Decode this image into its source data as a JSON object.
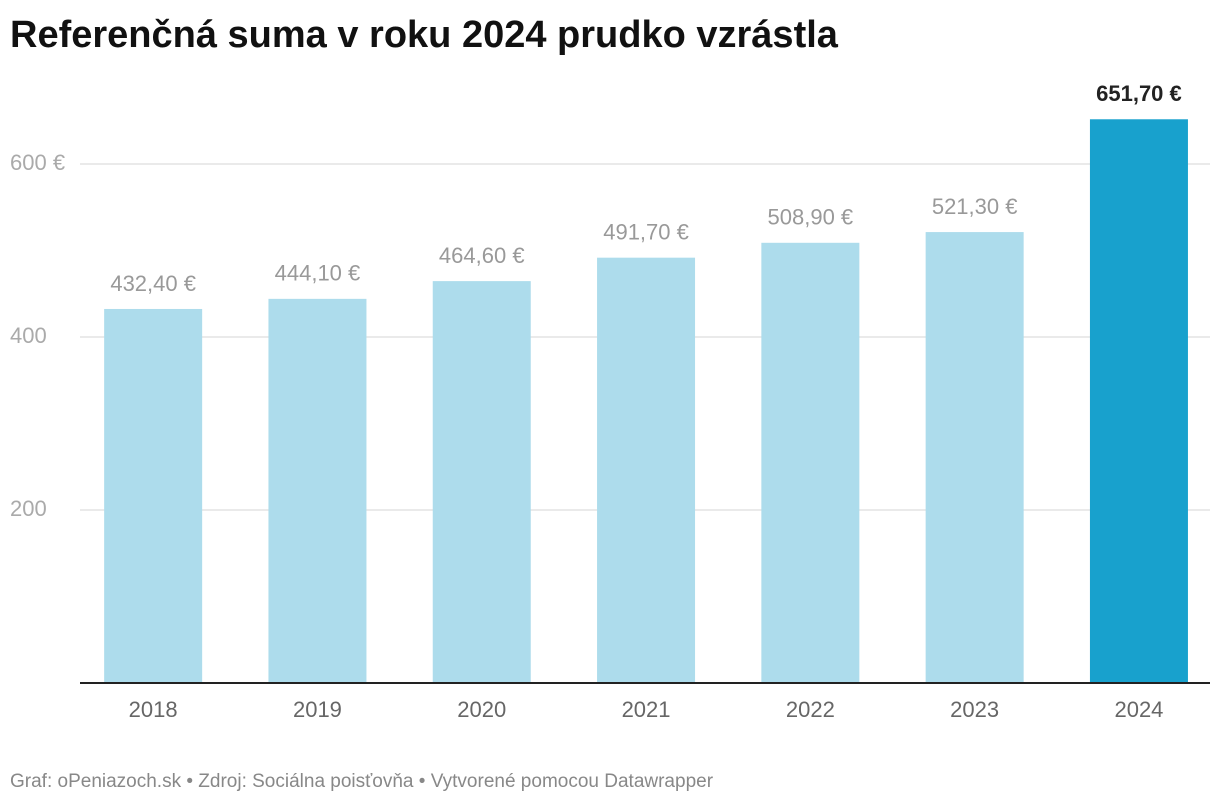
{
  "chart_data": {
    "type": "bar",
    "title": "Referenčná suma v roku 2024 prudko vzrástla",
    "categories": [
      "2018",
      "2019",
      "2020",
      "2021",
      "2022",
      "2023",
      "2024"
    ],
    "values": [
      432.4,
      444.1,
      464.6,
      491.7,
      508.9,
      521.3,
      651.7
    ],
    "value_labels": [
      "432,40 €",
      "444,10 €",
      "464,60 €",
      "491,70 €",
      "508,90 €",
      "521,30 €",
      "651,70 €"
    ],
    "colors": [
      "#addcec",
      "#addcec",
      "#addcec",
      "#addcec",
      "#addcec",
      "#addcec",
      "#18a1cd"
    ],
    "value_label_colors": [
      "#999999",
      "#999999",
      "#999999",
      "#999999",
      "#999999",
      "#999999",
      "#222222"
    ],
    "ylim": [
      0,
      700
    ],
    "yticks": [
      200,
      400,
      {
        "value": 600,
        "label": "600 €"
      }
    ],
    "grid": true,
    "source": "Graf: oPeniazoch.sk • Zdroj: Sociálna poisťovňa • Vytvorené pomocou Datawrapper"
  }
}
